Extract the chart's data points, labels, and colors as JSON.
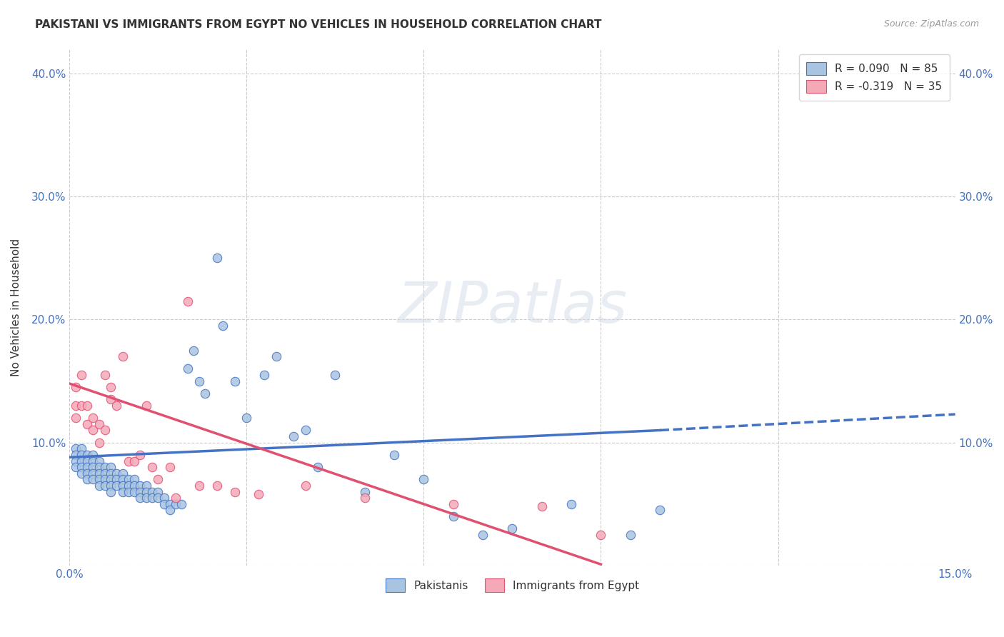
{
  "title": "PAKISTANI VS IMMIGRANTS FROM EGYPT NO VEHICLES IN HOUSEHOLD CORRELATION CHART",
  "source": "Source: ZipAtlas.com",
  "ylabel": "No Vehicles in Household",
  "xlim": [
    0.0,
    0.15
  ],
  "ylim": [
    0.0,
    0.42
  ],
  "xticks": [
    0.0,
    0.03,
    0.06,
    0.09,
    0.12,
    0.15
  ],
  "xtick_labels": [
    "0.0%",
    "",
    "",
    "",
    "",
    "15.0%"
  ],
  "yticks": [
    0.0,
    0.1,
    0.2,
    0.3,
    0.4
  ],
  "ytick_labels": [
    "",
    "10.0%",
    "20.0%",
    "30.0%",
    "40.0%"
  ],
  "legend_label1": "R = 0.090   N = 85",
  "legend_label2": "R = -0.319   N = 35",
  "legend_labels_bottom": [
    "Pakistanis",
    "Immigrants from Egypt"
  ],
  "color_blue": "#a8c4e0",
  "color_pink": "#f4a8b8",
  "trendline_blue": "#4472c4",
  "trendline_pink": "#e05070",
  "background": "#ffffff",
  "grid_color": "#cccccc",
  "pakistani_x": [
    0.001,
    0.001,
    0.001,
    0.001,
    0.002,
    0.002,
    0.002,
    0.002,
    0.002,
    0.003,
    0.003,
    0.003,
    0.003,
    0.003,
    0.004,
    0.004,
    0.004,
    0.004,
    0.004,
    0.005,
    0.005,
    0.005,
    0.005,
    0.005,
    0.006,
    0.006,
    0.006,
    0.006,
    0.007,
    0.007,
    0.007,
    0.007,
    0.007,
    0.008,
    0.008,
    0.008,
    0.009,
    0.009,
    0.009,
    0.009,
    0.01,
    0.01,
    0.01,
    0.011,
    0.011,
    0.011,
    0.012,
    0.012,
    0.012,
    0.013,
    0.013,
    0.013,
    0.014,
    0.014,
    0.015,
    0.015,
    0.016,
    0.016,
    0.017,
    0.017,
    0.018,
    0.019,
    0.02,
    0.021,
    0.022,
    0.023,
    0.025,
    0.026,
    0.028,
    0.03,
    0.033,
    0.035,
    0.038,
    0.04,
    0.042,
    0.045,
    0.05,
    0.055,
    0.06,
    0.065,
    0.07,
    0.075,
    0.085,
    0.095,
    0.1
  ],
  "pakistani_y": [
    0.095,
    0.09,
    0.085,
    0.08,
    0.095,
    0.09,
    0.085,
    0.08,
    0.075,
    0.09,
    0.085,
    0.08,
    0.075,
    0.07,
    0.09,
    0.085,
    0.08,
    0.075,
    0.07,
    0.085,
    0.08,
    0.075,
    0.07,
    0.065,
    0.08,
    0.075,
    0.07,
    0.065,
    0.08,
    0.075,
    0.07,
    0.065,
    0.06,
    0.075,
    0.07,
    0.065,
    0.075,
    0.07,
    0.065,
    0.06,
    0.07,
    0.065,
    0.06,
    0.07,
    0.065,
    0.06,
    0.065,
    0.06,
    0.055,
    0.065,
    0.06,
    0.055,
    0.06,
    0.055,
    0.06,
    0.055,
    0.055,
    0.05,
    0.05,
    0.045,
    0.05,
    0.05,
    0.16,
    0.175,
    0.15,
    0.14,
    0.25,
    0.195,
    0.15,
    0.12,
    0.155,
    0.17,
    0.105,
    0.11,
    0.08,
    0.155,
    0.06,
    0.09,
    0.07,
    0.04,
    0.025,
    0.03,
    0.05,
    0.025,
    0.045
  ],
  "egypt_x": [
    0.001,
    0.001,
    0.001,
    0.002,
    0.002,
    0.003,
    0.003,
    0.004,
    0.004,
    0.005,
    0.005,
    0.006,
    0.006,
    0.007,
    0.007,
    0.008,
    0.009,
    0.01,
    0.011,
    0.012,
    0.013,
    0.014,
    0.015,
    0.017,
    0.018,
    0.02,
    0.022,
    0.025,
    0.028,
    0.032,
    0.04,
    0.05,
    0.065,
    0.08,
    0.09
  ],
  "egypt_y": [
    0.145,
    0.13,
    0.12,
    0.155,
    0.13,
    0.115,
    0.13,
    0.12,
    0.11,
    0.115,
    0.1,
    0.155,
    0.11,
    0.145,
    0.135,
    0.13,
    0.17,
    0.085,
    0.085,
    0.09,
    0.13,
    0.08,
    0.07,
    0.08,
    0.055,
    0.215,
    0.065,
    0.065,
    0.06,
    0.058,
    0.065,
    0.055,
    0.05,
    0.048,
    0.025
  ],
  "trendline_blue_start_x": 0.0,
  "trendline_blue_start_y": 0.088,
  "trendline_blue_end_x": 0.1,
  "trendline_blue_end_y": 0.11,
  "trendline_blue_dashed_end_x": 0.15,
  "trendline_blue_dashed_end_y": 0.123,
  "trendline_pink_start_x": 0.0,
  "trendline_pink_start_y": 0.148,
  "trendline_pink_end_x": 0.09,
  "trendline_pink_end_y": 0.001
}
